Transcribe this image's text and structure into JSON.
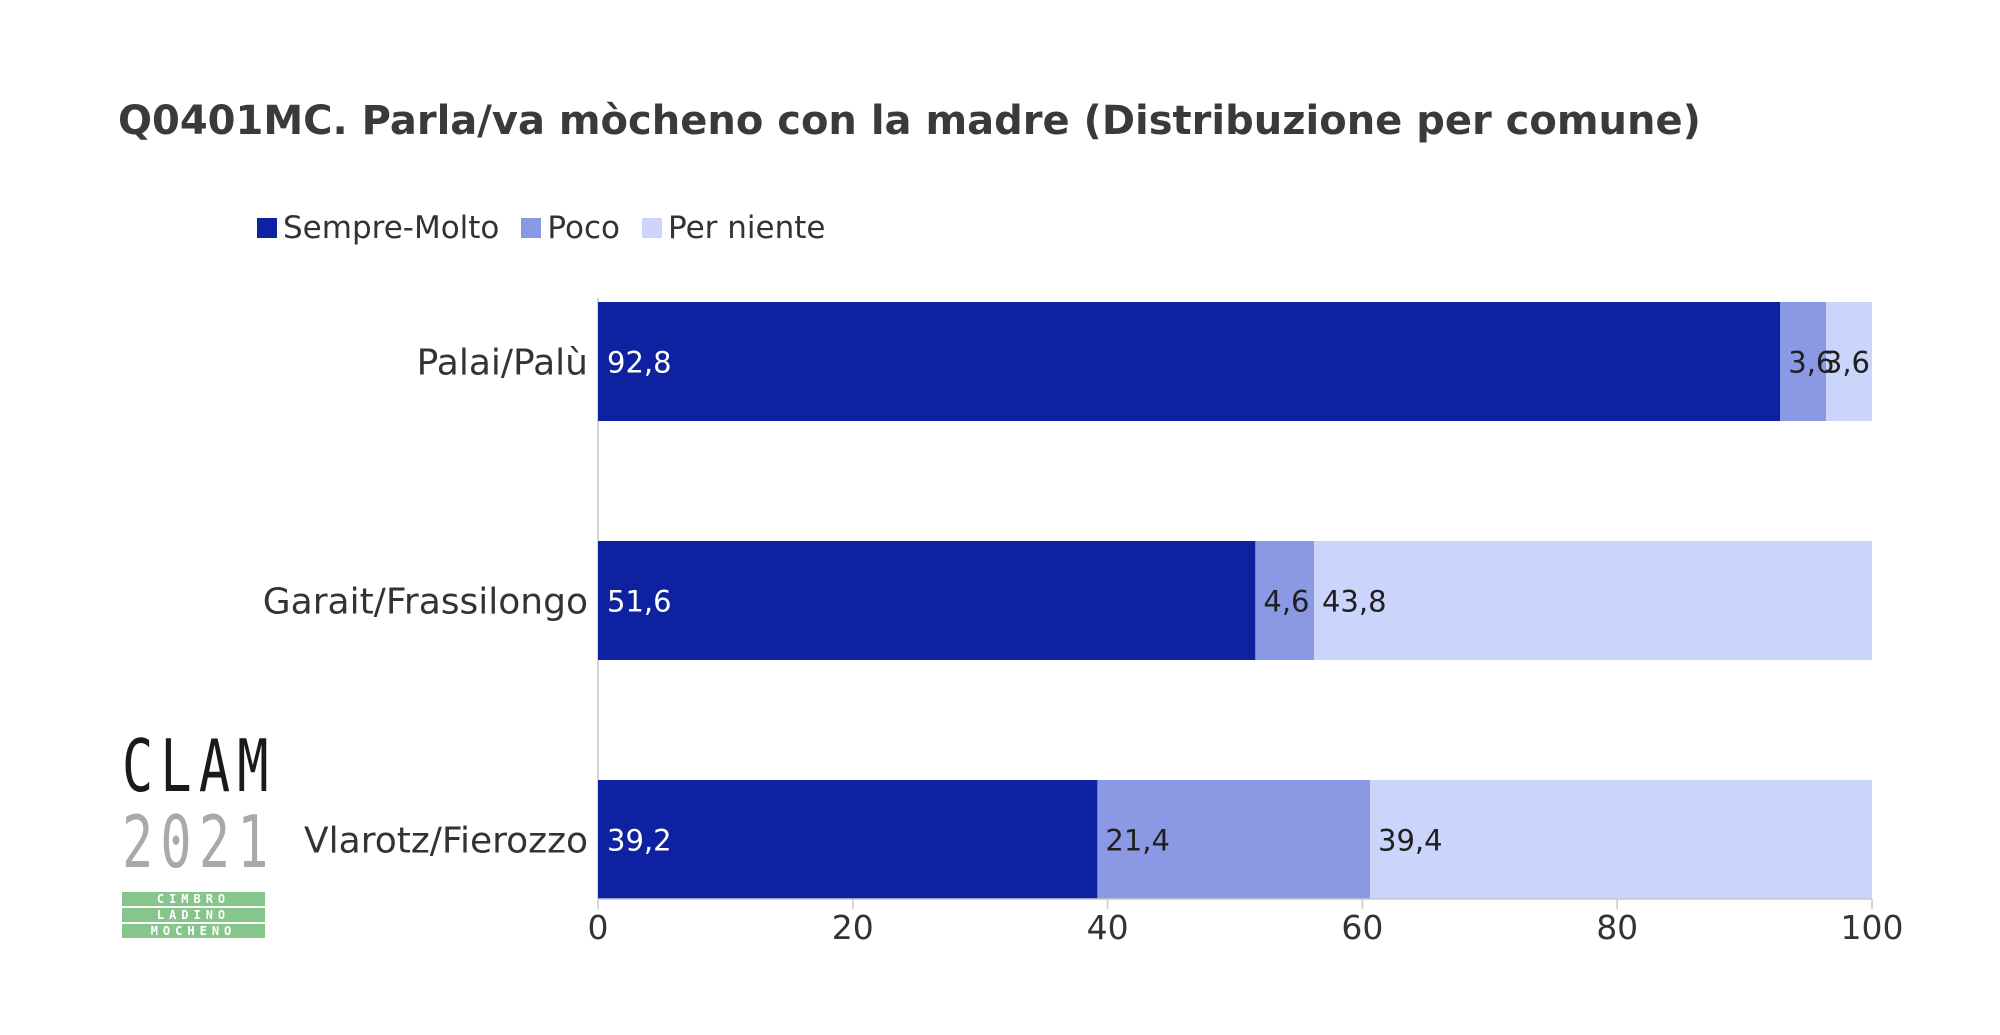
{
  "chart_data": {
    "type": "bar",
    "orientation": "horizontal",
    "stacked": true,
    "title": "Q0401MC. Parla/va mòcheno con la madre (Distribuzione per comune)",
    "categories": [
      "Palai/Palù",
      "Garait/Frassilongo",
      "Vlarotz/Fierozzo"
    ],
    "series": [
      {
        "name": "Sempre-Molto",
        "color": "#0d21a1",
        "label_color": "#ffffff",
        "values": [
          92.8,
          51.6,
          39.2
        ],
        "labels": [
          "92,8",
          "51,6",
          "39,2"
        ]
      },
      {
        "name": "Poco",
        "color": "#8b99e4",
        "label_color": "#1f1f1f",
        "values": [
          3.6,
          4.6,
          21.4
        ],
        "labels": [
          "3,6",
          "4,6",
          "21,4"
        ]
      },
      {
        "name": "Per niente",
        "color": "#cbd4fb",
        "label_color": "#1f1f1f",
        "values": [
          3.6,
          43.8,
          39.4
        ],
        "labels": [
          "3,6",
          "43,8",
          "39,4"
        ]
      }
    ],
    "xlim": [
      0,
      100
    ],
    "xticks": [
      0,
      20,
      40,
      60,
      80,
      100
    ],
    "xlabel": "",
    "ylabel": "",
    "grid": false,
    "legend": "top-left"
  },
  "logo": {
    "word": "CLAM",
    "year": "2021",
    "lines": [
      "CIMBRO",
      "LADINO",
      "MOCHENO"
    ]
  }
}
